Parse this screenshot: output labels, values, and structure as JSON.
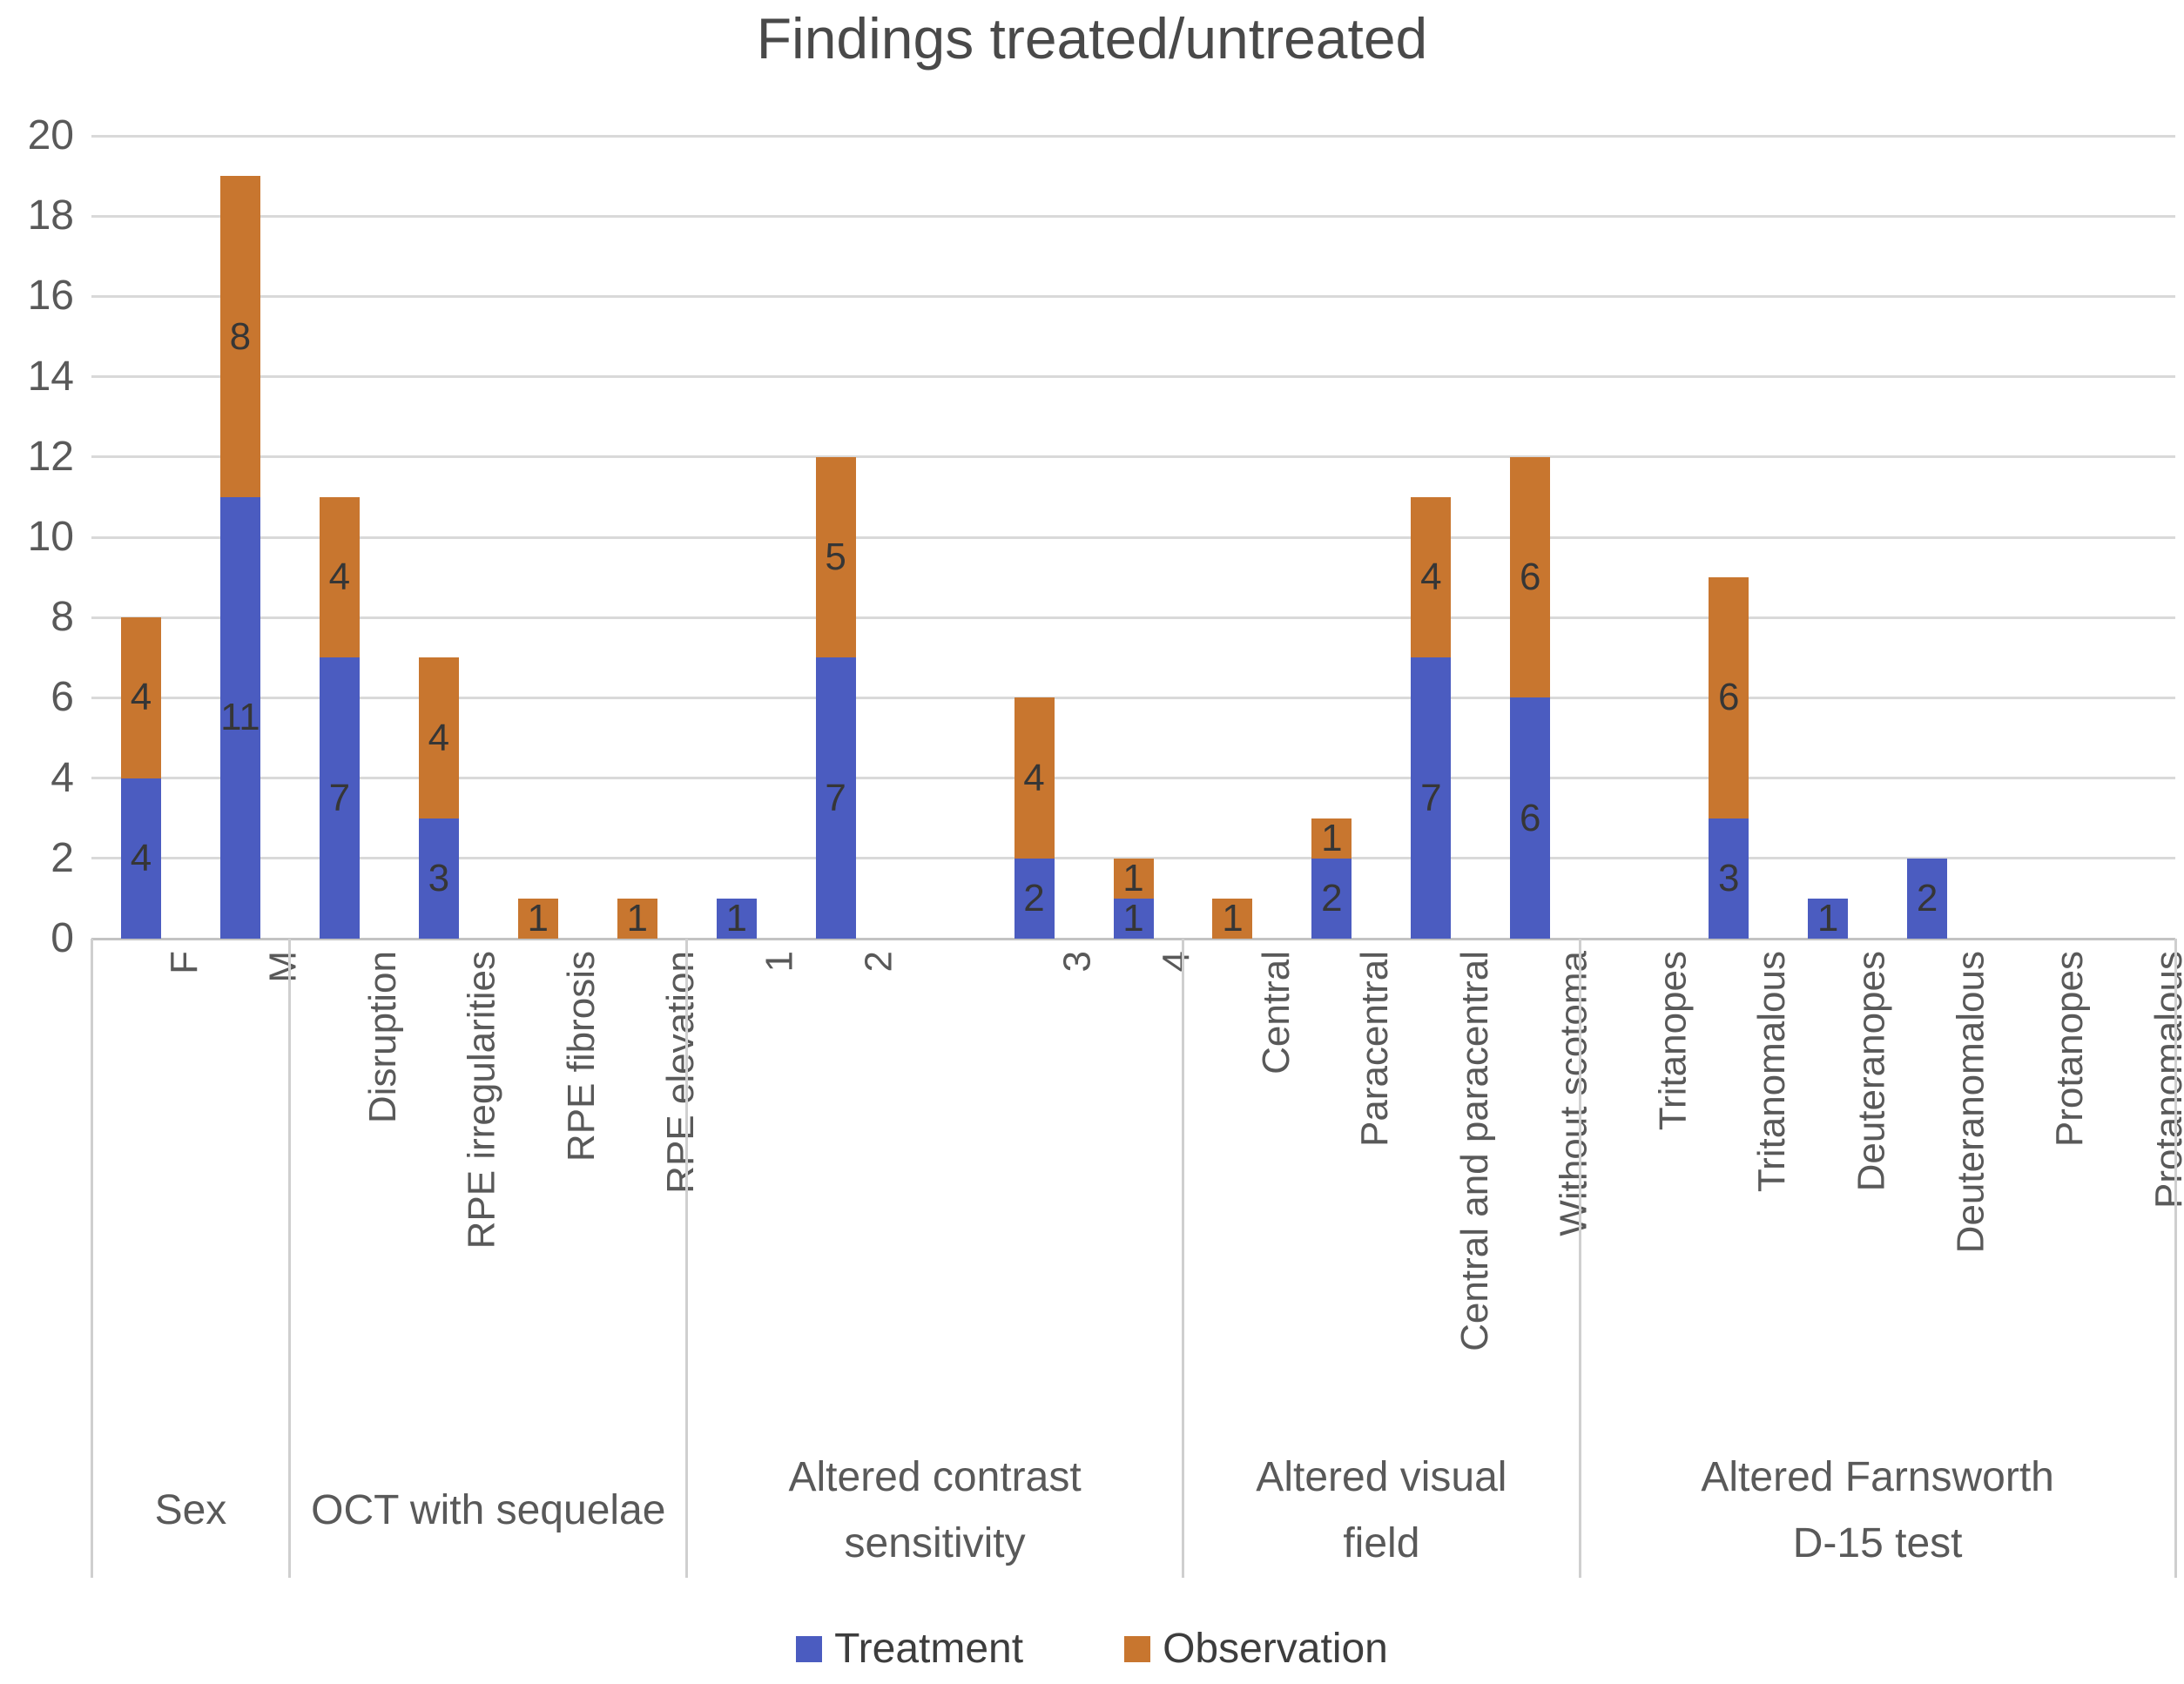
{
  "title": "Findings treated/untreated",
  "chart_data": {
    "type": "bar",
    "stacked": true,
    "title": "Findings treated/untreated",
    "xlabel": "",
    "ylabel": "",
    "ylim": [
      0,
      20
    ],
    "yticks": [
      0,
      2,
      4,
      6,
      8,
      10,
      12,
      14,
      16,
      18,
      20
    ],
    "grid": true,
    "legend_position": "bottom",
    "series": [
      {
        "name": "Treatment",
        "color": "#4b5cc0"
      },
      {
        "name": "Observation",
        "color": "#c8762f"
      }
    ],
    "groups": [
      {
        "label_lines": [
          "Sex"
        ],
        "categories": [
          {
            "label": "F",
            "treatment": 4,
            "observation": 4
          },
          {
            "label": "M",
            "treatment": 11,
            "observation": 8
          }
        ]
      },
      {
        "label_lines": [
          "OCT with sequelae"
        ],
        "categories": [
          {
            "label": "Disruption",
            "treatment": 7,
            "observation": 4
          },
          {
            "label": "RPE irregularities",
            "treatment": 3,
            "observation": 4
          },
          {
            "label": "RPE fibrosis",
            "treatment": 0,
            "observation": 1
          },
          {
            "label": "RPE elevation",
            "treatment": 0,
            "observation": 1
          }
        ]
      },
      {
        "label_lines": [
          "Altered contrast",
          "sensitivity"
        ],
        "categories": [
          {
            "label": "1",
            "treatment": 1,
            "observation": 0
          },
          {
            "label": "2",
            "treatment": 7,
            "observation": 5
          },
          {
            "label": "",
            "treatment": 0,
            "observation": 0
          },
          {
            "label": "3",
            "treatment": 2,
            "observation": 4
          },
          {
            "label": "4",
            "treatment": 1,
            "observation": 1
          }
        ]
      },
      {
        "label_lines": [
          "Altered visual",
          "field"
        ],
        "categories": [
          {
            "label": "Central",
            "treatment": 0,
            "observation": 1
          },
          {
            "label": "Paracentral",
            "treatment": 2,
            "observation": 1
          },
          {
            "label": "Central and paracentral",
            "treatment": 7,
            "observation": 4
          },
          {
            "label": "Without scotoma",
            "treatment": 6,
            "observation": 6
          }
        ]
      },
      {
        "label_lines": [
          "Altered Farnsworth",
          "D-15 test"
        ],
        "categories": [
          {
            "label": "Tritanopes",
            "treatment": 0,
            "observation": 0
          },
          {
            "label": "Tritanomalous",
            "treatment": 3,
            "observation": 6
          },
          {
            "label": "Deuteranopes",
            "treatment": 1,
            "observation": 0
          },
          {
            "label": "Deuteranomalous",
            "treatment": 2,
            "observation": 0
          },
          {
            "label": "Protanopes",
            "treatment": 0,
            "observation": 0
          },
          {
            "label": "Protanomalous",
            "treatment": 0,
            "observation": 0
          }
        ]
      }
    ]
  }
}
